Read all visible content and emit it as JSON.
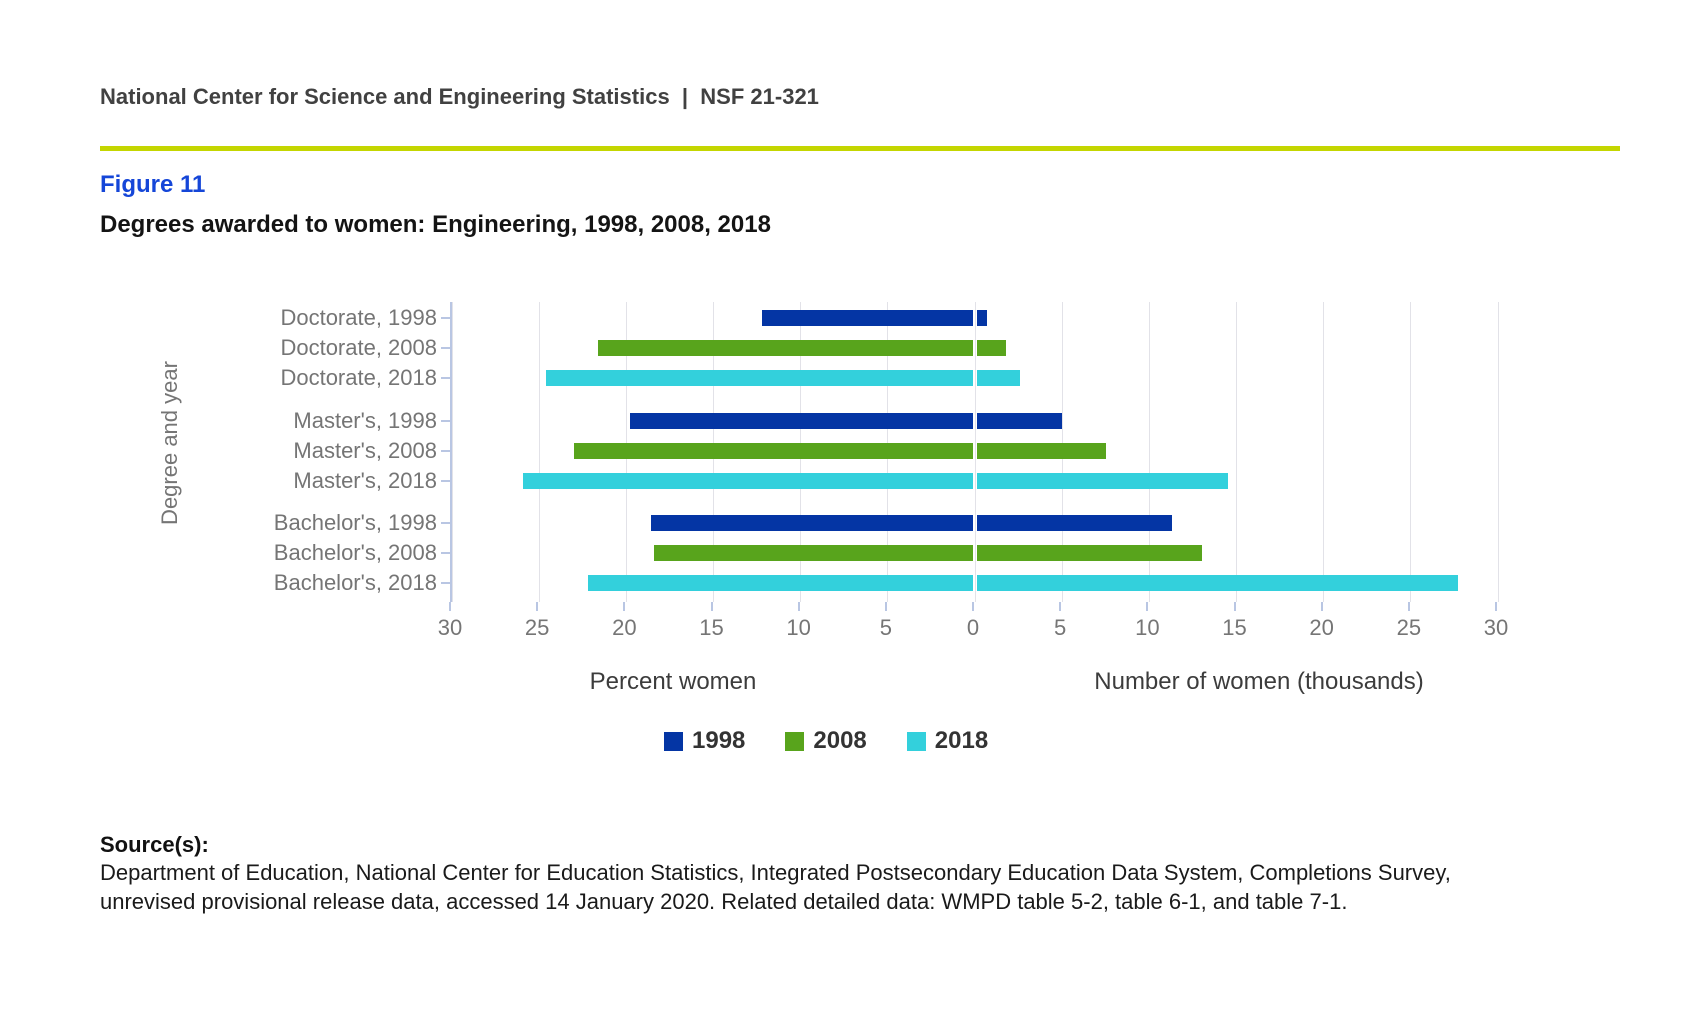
{
  "header": {
    "text": "National Center for Science and Engineering Statistics  |  NSF 21-321"
  },
  "figure": {
    "label": "Figure 11",
    "title": "Degrees awarded to women: Engineering, 1998, 2008, 2018"
  },
  "chart_data": {
    "type": "bar",
    "orientation": "horizontal-diverging",
    "title": "Degrees awarded to women: Engineering, 1998, 2008, 2018",
    "ylabel": "Degree and year",
    "x_axis": {
      "left_title": "Percent women",
      "right_title": "Number of women (thousands)",
      "max": 30,
      "tick_step": 5,
      "tick_labels": [
        "30",
        "25",
        "20",
        "15",
        "10",
        "5",
        "0",
        "5",
        "10",
        "15",
        "20",
        "25",
        "30"
      ],
      "grid": true
    },
    "groups": [
      {
        "name": "Doctorate",
        "rows": [
          {
            "label": "Doctorate, 1998",
            "year": "1998",
            "percent_women": 12.2,
            "number_thousands": 0.7
          },
          {
            "label": "Doctorate, 2008",
            "year": "2008",
            "percent_women": 21.6,
            "number_thousands": 1.8
          },
          {
            "label": "Doctorate, 2018",
            "year": "2018",
            "percent_women": 24.6,
            "number_thousands": 2.6
          }
        ]
      },
      {
        "name": "Master's",
        "rows": [
          {
            "label": "Master's, 1998",
            "year": "1998",
            "percent_women": 19.8,
            "number_thousands": 5.0
          },
          {
            "label": "Master's, 2008",
            "year": "2008",
            "percent_women": 23.0,
            "number_thousands": 7.5
          },
          {
            "label": "Master's, 2018",
            "year": "2018",
            "percent_women": 25.9,
            "number_thousands": 14.5
          }
        ]
      },
      {
        "name": "Bachelor's",
        "rows": [
          {
            "label": "Bachelor's, 1998",
            "year": "1998",
            "percent_women": 18.6,
            "number_thousands": 11.3
          },
          {
            "label": "Bachelor's, 2008",
            "year": "2008",
            "percent_women": 18.4,
            "number_thousands": 13.0
          },
          {
            "label": "Bachelor's, 2018",
            "year": "2018",
            "percent_women": 22.2,
            "number_thousands": 27.7
          }
        ]
      }
    ],
    "legend": [
      {
        "label": "1998",
        "color": "#0435a4"
      },
      {
        "label": "2008",
        "color": "#58a41c"
      },
      {
        "label": "2018",
        "color": "#33d0dc"
      }
    ],
    "series_colors": {
      "1998": "#0435a4",
      "2008": "#58a41c",
      "2018": "#33d0dc"
    },
    "legend_position": "bottom-center"
  },
  "colors": {
    "divider": "#c4d600",
    "figure_label": "#1546d8",
    "gridline": "#e2e2e8",
    "axis_line": "#b9c6e3",
    "tick_label": "#757575"
  },
  "source": {
    "heading": "Source(s):",
    "lines": [
      "Department of Education, National Center for Education Statistics, Integrated Postsecondary Education Data System, Completions Survey,",
      "unrevised provisional release data, accessed 14 January 2020. Related detailed data: WMPD table 5-2, table 6-1, and table 7-1."
    ]
  }
}
